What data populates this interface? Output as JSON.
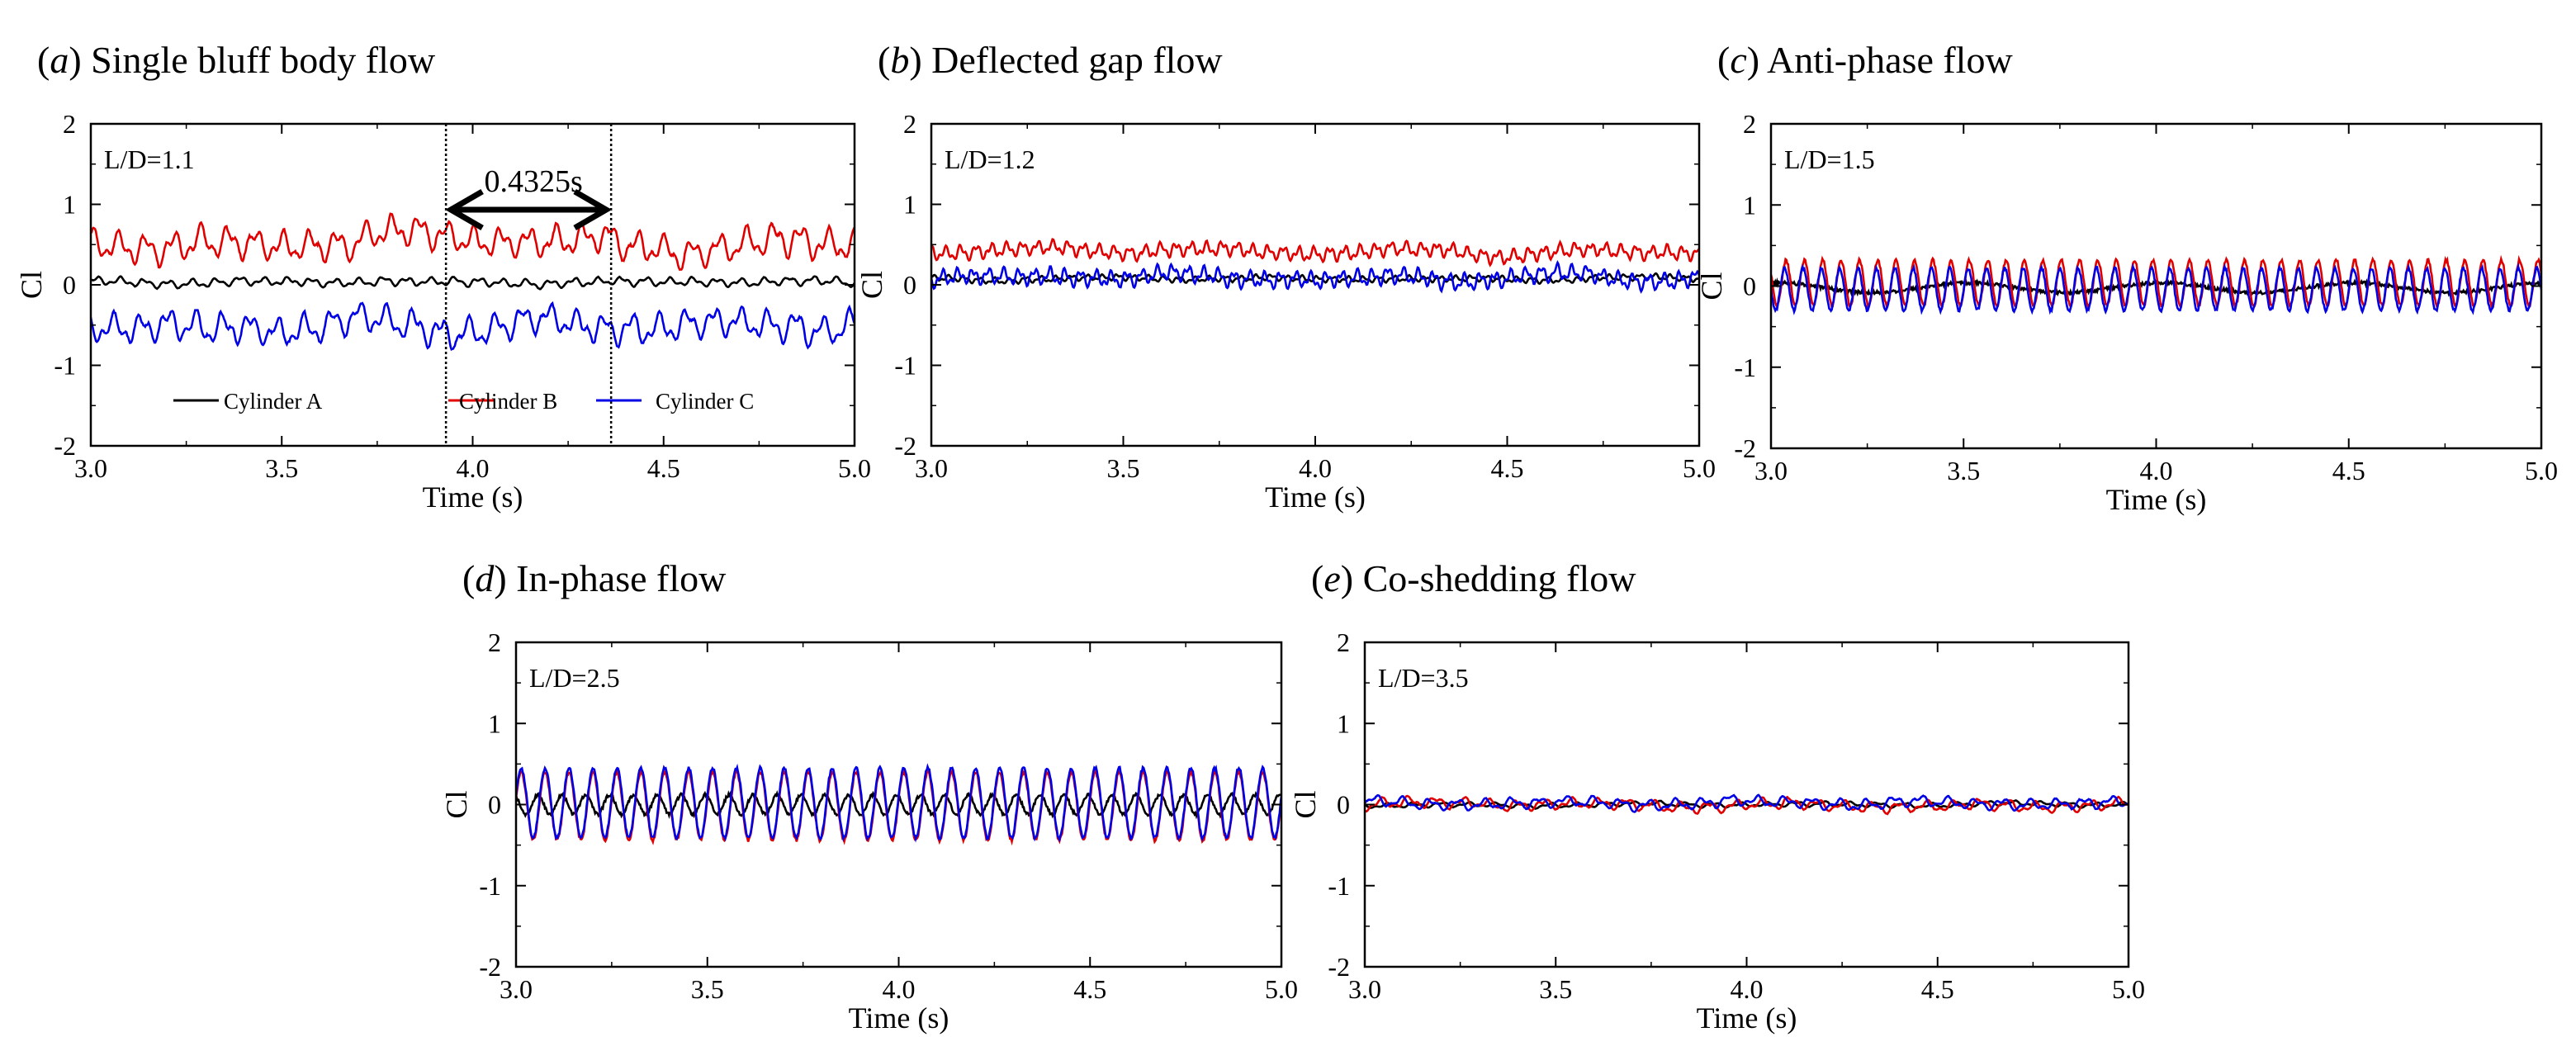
{
  "figure": {
    "legend": {
      "entries": [
        {
          "label": "Cylinder A",
          "color": "#000000"
        },
        {
          "label": "Cylinder B",
          "color": "#e00000"
        },
        {
          "label": "Cylinder C",
          "color": "#0000e6"
        }
      ]
    },
    "annotation": {
      "label": "0.4325s",
      "t_start": 3.93,
      "t_end": 4.3625
    }
  },
  "chart_data": [
    {
      "type": "line",
      "panel_letter": "a",
      "title": "Single bluff body flow",
      "param_label": "L/D=1.1",
      "xlabel": "Time (s)",
      "ylabel": "Cl",
      "xlim": [
        3.0,
        5.0
      ],
      "ylim": [
        -2,
        2
      ],
      "xticks": [
        "3.0",
        "3.5",
        "4.0",
        "4.5",
        "5.0"
      ],
      "yticks": [
        "-2",
        "-1",
        "0",
        "1",
        "2"
      ],
      "series": [
        {
          "name": "Cylinder A",
          "color": "#000000",
          "mean": 0.03,
          "fluct_amplitude": 0.07,
          "dominant_freq_hz": 16
        },
        {
          "name": "Cylinder B",
          "color": "#e00000",
          "mean": 0.52,
          "fluct_amplitude": 0.25,
          "dominant_freq_hz": 14
        },
        {
          "name": "Cylinder C",
          "color": "#0000e6",
          "mean": -0.5,
          "fluct_amplitude": 0.25,
          "dominant_freq_hz": 14
        }
      ]
    },
    {
      "type": "line",
      "panel_letter": "b",
      "title": "Deflected gap flow",
      "param_label": "L/D=1.2",
      "xlabel": "Time (s)",
      "ylabel": "Cl",
      "xlim": [
        3.0,
        5.0
      ],
      "ylim": [
        -2,
        2
      ],
      "xticks": [
        "3.0",
        "3.5",
        "4.0",
        "4.5",
        "5.0"
      ],
      "yticks": [
        "-2",
        "-1",
        "0",
        "1",
        "2"
      ],
      "series": [
        {
          "name": "Cylinder A",
          "color": "#000000",
          "mean": 0.08,
          "fluct_amplitude": 0.05,
          "dominant_freq_hz": 25
        },
        {
          "name": "Cylinder B",
          "color": "#e00000",
          "mean": 0.42,
          "fluct_amplitude": 0.12,
          "dominant_freq_hz": 25
        },
        {
          "name": "Cylinder C",
          "color": "#0000e6",
          "mean": 0.1,
          "fluct_amplitude": 0.14,
          "dominant_freq_hz": 25
        }
      ]
    },
    {
      "type": "line",
      "panel_letter": "c",
      "title": "Anti-phase flow",
      "param_label": "L/D=1.5",
      "xlabel": "Time (s)",
      "ylabel": "Cl",
      "xlim": [
        3.0,
        5.0
      ],
      "ylim": [
        -2,
        2
      ],
      "xticks": [
        "3.0",
        "3.5",
        "4.0",
        "4.5",
        "5.0"
      ],
      "yticks": [
        "-2",
        "-1",
        "0",
        "1",
        "2"
      ],
      "series": [
        {
          "name": "Cylinder A",
          "color": "#000000",
          "mean": -0.02,
          "fluct_amplitude": 0.06,
          "dominant_freq_hz": 2
        },
        {
          "name": "Cylinder B",
          "color": "#e00000",
          "mean": 0.04,
          "fluct_amplitude": 0.28,
          "dominant_freq_hz": 21
        },
        {
          "name": "Cylinder C",
          "color": "#0000e6",
          "mean": -0.04,
          "fluct_amplitude": 0.26,
          "dominant_freq_hz": 21
        }
      ]
    },
    {
      "type": "line",
      "panel_letter": "d",
      "title": "In-phase flow",
      "param_label": "L/D=2.5",
      "xlabel": "Time (s)",
      "ylabel": "Cl",
      "xlim": [
        3.0,
        5.0
      ],
      "ylim": [
        -2,
        2
      ],
      "xticks": [
        "3.0",
        "3.5",
        "4.0",
        "4.5",
        "5.0"
      ],
      "yticks": [
        "-2",
        "-1",
        "0",
        "1",
        "2"
      ],
      "series": [
        {
          "name": "Cylinder A",
          "color": "#000000",
          "mean": 0.0,
          "fluct_amplitude": 0.12,
          "dominant_freq_hz": 16
        },
        {
          "name": "Cylinder B",
          "color": "#e00000",
          "mean": -0.02,
          "fluct_amplitude": 0.42,
          "dominant_freq_hz": 16
        },
        {
          "name": "Cylinder C",
          "color": "#0000e6",
          "mean": 0.02,
          "fluct_amplitude": 0.43,
          "dominant_freq_hz": 16
        }
      ]
    },
    {
      "type": "line",
      "panel_letter": "e",
      "title": "Co-shedding flow",
      "param_label": "L/D=3.5",
      "xlabel": "Time (s)",
      "ylabel": "Cl",
      "xlim": [
        3.0,
        5.0
      ],
      "ylim": [
        -2,
        2
      ],
      "xticks": [
        "3.0",
        "3.5",
        "4.0",
        "4.5",
        "5.0"
      ],
      "yticks": [
        "-2",
        "-1",
        "0",
        "1",
        "2"
      ],
      "series": [
        {
          "name": "Cylinder A",
          "color": "#000000",
          "mean": 0.0,
          "fluct_amplitude": 0.04,
          "dominant_freq_hz": 14
        },
        {
          "name": "Cylinder B",
          "color": "#e00000",
          "mean": 0.0,
          "fluct_amplitude": 0.09,
          "dominant_freq_hz": 14
        },
        {
          "name": "Cylinder C",
          "color": "#0000e6",
          "mean": 0.02,
          "fluct_amplitude": 0.09,
          "dominant_freq_hz": 14
        }
      ]
    }
  ]
}
